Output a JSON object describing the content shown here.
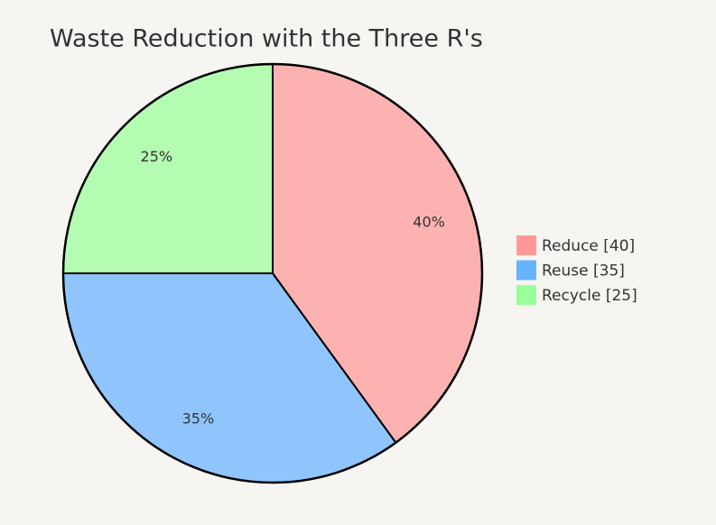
{
  "chart_data": {
    "type": "pie",
    "title": "Waste Reduction with the Three R's",
    "categories": [
      "Reduce [40]",
      "Reuse [35]",
      "Recycle [25]"
    ],
    "values": [
      40,
      35,
      25
    ],
    "value_labels": [
      "40%",
      "35%",
      "25%"
    ],
    "colors": [
      "#ff9999",
      "#66b3ff",
      "#99ff99"
    ]
  }
}
